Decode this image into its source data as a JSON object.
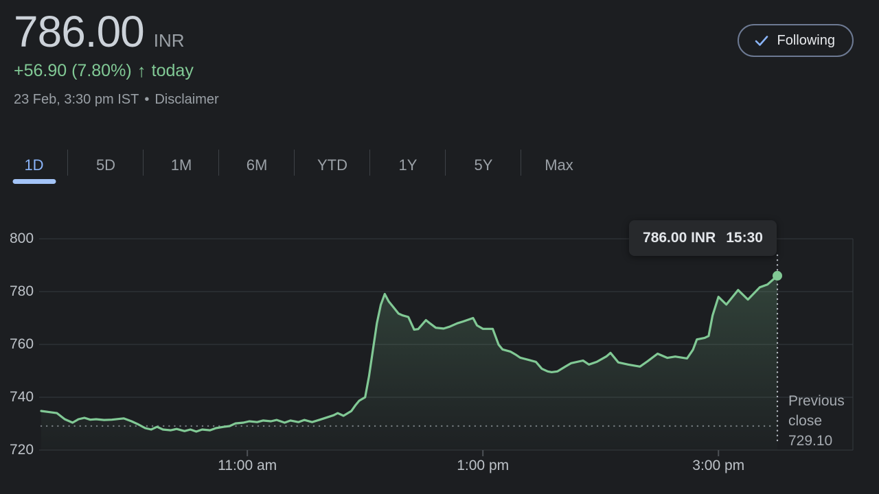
{
  "colors": {
    "green": "#81c995",
    "blue": "#8ab4f8"
  },
  "header": {
    "price": "786.00",
    "currency": "INR",
    "change": "+56.90 (7.80%)",
    "change_direction": "up",
    "arrow_glyph": "↑",
    "change_period": "today",
    "datetime": "23 Feb, 3:30 pm IST",
    "separator": "•",
    "disclaimer": "Disclaimer",
    "following_label": "Following"
  },
  "tabs": {
    "items": [
      {
        "label": "1D",
        "selected": true
      },
      {
        "label": "5D",
        "selected": false
      },
      {
        "label": "1M",
        "selected": false
      },
      {
        "label": "6M",
        "selected": false
      },
      {
        "label": "YTD",
        "selected": false
      },
      {
        "label": "1Y",
        "selected": false
      },
      {
        "label": "5Y",
        "selected": false
      },
      {
        "label": "Max",
        "selected": false
      }
    ]
  },
  "tooltip": {
    "price_label": "786.00 INR",
    "time": "15:30"
  },
  "previous_close": {
    "label": "Previous close",
    "value": "729.10"
  },
  "chart_data": {
    "type": "area",
    "x_ticks": [
      {
        "label": "11:00 am",
        "t": "11:00"
      },
      {
        "label": "1:00 pm",
        "t": "13:00"
      },
      {
        "label": "3:00 pm",
        "t": "15:00"
      }
    ],
    "y_ticks": [
      800,
      780,
      760,
      740,
      720
    ],
    "x_range": [
      "09:15",
      "15:30"
    ],
    "y_range": [
      720,
      800
    ],
    "grid": true,
    "previous_close": 729.1,
    "marker": {
      "time": "15:30",
      "value": 786.0
    },
    "points": [
      [
        "09:15",
        734.8
      ],
      [
        "09:20",
        734.3
      ],
      [
        "09:23",
        734.0
      ],
      [
        "09:27",
        731.7
      ],
      [
        "09:31",
        730.4
      ],
      [
        "09:34",
        731.7
      ],
      [
        "09:37",
        732.2
      ],
      [
        "09:40",
        731.5
      ],
      [
        "09:43",
        731.7
      ],
      [
        "09:47",
        731.4
      ],
      [
        "09:51",
        731.5
      ],
      [
        "09:57",
        732.0
      ],
      [
        "10:01",
        730.9
      ],
      [
        "10:04",
        729.9
      ],
      [
        "10:08",
        728.3
      ],
      [
        "10:11",
        727.8
      ],
      [
        "10:14",
        728.8
      ],
      [
        "10:17",
        727.8
      ],
      [
        "10:21",
        727.5
      ],
      [
        "10:24",
        728.0
      ],
      [
        "10:28",
        727.2
      ],
      [
        "10:31",
        727.8
      ],
      [
        "10:34",
        727.0
      ],
      [
        "10:37",
        727.8
      ],
      [
        "10:41",
        727.5
      ],
      [
        "10:44",
        728.3
      ],
      [
        "10:48",
        728.8
      ],
      [
        "10:51",
        729.1
      ],
      [
        "10:54",
        730.1
      ],
      [
        "10:58",
        730.4
      ],
      [
        "11:01",
        730.9
      ],
      [
        "11:05",
        730.6
      ],
      [
        "11:08",
        731.2
      ],
      [
        "11:12",
        730.9
      ],
      [
        "11:15",
        731.4
      ],
      [
        "11:19",
        730.4
      ],
      [
        "11:22",
        731.2
      ],
      [
        "11:26",
        730.6
      ],
      [
        "11:29",
        731.4
      ],
      [
        "11:33",
        730.6
      ],
      [
        "11:37",
        731.5
      ],
      [
        "11:44",
        733.2
      ],
      [
        "11:46",
        734.0
      ],
      [
        "11:49",
        733.0
      ],
      [
        "11:53",
        734.8
      ],
      [
        "11:55",
        736.9
      ],
      [
        "11:57",
        738.7
      ],
      [
        "12:00",
        740.0
      ],
      [
        "12:02",
        748.0
      ],
      [
        "12:04",
        758.0
      ],
      [
        "12:06",
        768.0
      ],
      [
        "12:08",
        775.0
      ],
      [
        "12:10",
        779.1
      ],
      [
        "12:12",
        776.3
      ],
      [
        "12:14",
        774.5
      ],
      [
        "12:17",
        771.7
      ],
      [
        "12:19",
        771.0
      ],
      [
        "12:22",
        770.4
      ],
      [
        "12:25",
        765.6
      ],
      [
        "12:27",
        765.8
      ],
      [
        "12:31",
        769.2
      ],
      [
        "12:33",
        768.0
      ],
      [
        "12:36",
        766.3
      ],
      [
        "12:40",
        766.0
      ],
      [
        "12:43",
        766.7
      ],
      [
        "12:47",
        768.0
      ],
      [
        "12:50",
        768.7
      ],
      [
        "12:55",
        770.0
      ],
      [
        "12:57",
        767.2
      ],
      [
        "13:00",
        765.9
      ],
      [
        "13:05",
        765.9
      ],
      [
        "13:08",
        759.9
      ],
      [
        "13:10",
        758.1
      ],
      [
        "13:14",
        757.3
      ],
      [
        "13:17",
        756.0
      ],
      [
        "13:19",
        755.0
      ],
      [
        "13:23",
        754.2
      ],
      [
        "13:27",
        753.4
      ],
      [
        "13:30",
        750.8
      ],
      [
        "13:33",
        749.8
      ],
      [
        "13:35",
        749.5
      ],
      [
        "13:38",
        749.8
      ],
      [
        "13:42",
        751.6
      ],
      [
        "13:45",
        752.9
      ],
      [
        "13:51",
        753.9
      ],
      [
        "13:54",
        752.4
      ],
      [
        "13:58",
        753.4
      ],
      [
        "14:03",
        755.5
      ],
      [
        "14:05",
        756.8
      ],
      [
        "14:09",
        753.2
      ],
      [
        "14:14",
        752.4
      ],
      [
        "14:20",
        751.6
      ],
      [
        "14:24",
        753.7
      ],
      [
        "14:29",
        756.5
      ],
      [
        "14:34",
        754.9
      ],
      [
        "14:38",
        755.4
      ],
      [
        "14:44",
        754.7
      ],
      [
        "14:47",
        758.0
      ],
      [
        "14:49",
        761.9
      ],
      [
        "14:53",
        762.5
      ],
      [
        "14:55",
        763.2
      ],
      [
        "14:57",
        771.0
      ],
      [
        "15:00",
        778.0
      ],
      [
        "15:04",
        775.1
      ],
      [
        "15:10",
        780.6
      ],
      [
        "15:15",
        777.0
      ],
      [
        "15:21",
        781.6
      ],
      [
        "15:25",
        782.7
      ],
      [
        "15:30",
        786.0
      ]
    ]
  }
}
